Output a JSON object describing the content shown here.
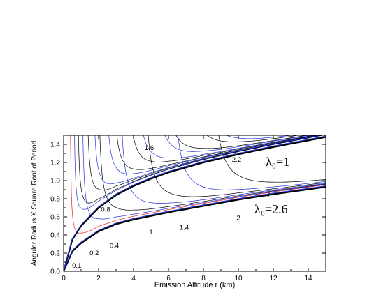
{
  "chart_data": {
    "type": "line",
    "xlabel": "Emission Altitude r (km)",
    "ylabel": "Angular Radius X Square Root of Period",
    "xlim": [
      0,
      15
    ],
    "ylim": [
      0,
      1.5
    ],
    "xticks": [
      0,
      2,
      4,
      6,
      8,
      10,
      12,
      14
    ],
    "yticks": [
      0.0,
      0.2,
      0.4,
      0.6,
      0.8,
      1.0,
      1.2,
      1.4
    ],
    "xtick_labels": [
      "0",
      "2",
      "4",
      "6",
      "8",
      "10",
      "12",
      "14"
    ],
    "ytick_labels": [
      "0.0",
      "0.2",
      "0.4",
      "0.6",
      "0.8",
      "1.0",
      "1.2",
      "1.4"
    ],
    "grid": false,
    "colors": {
      "black": "#000000",
      "blue": "#2233dd",
      "red": "#dd2222"
    },
    "envelopes": [
      {
        "label": "λ₀=1",
        "x": [
          0,
          0.5,
          1,
          2,
          3,
          4,
          5,
          6,
          8,
          10,
          12,
          15
        ],
        "y": [
          0,
          0.35,
          0.5,
          0.7,
          0.84,
          0.94,
          1.02,
          1.09,
          1.2,
          1.29,
          1.37,
          1.48
        ]
      },
      {
        "label": "λ₀=2.6",
        "x": [
          0,
          0.5,
          1,
          2,
          3,
          4,
          5,
          6,
          8,
          10,
          12,
          15
        ],
        "y": [
          0,
          0.22,
          0.31,
          0.44,
          0.52,
          0.57,
          0.61,
          0.65,
          0.72,
          0.79,
          0.85,
          0.93
        ]
      }
    ],
    "curve_labels": [
      {
        "text": "0.1",
        "x": 0.75,
        "y": 0.06
      },
      {
        "text": "0.2",
        "x": 1.75,
        "y": 0.2
      },
      {
        "text": "0.4",
        "x": 2.9,
        "y": 0.28
      },
      {
        "text": "0.8",
        "x": 2.4,
        "y": 0.68
      },
      {
        "text": "1",
        "x": 5.0,
        "y": 0.43
      },
      {
        "text": "1.4",
        "x": 6.9,
        "y": 0.48
      },
      {
        "text": "1.6",
        "x": 4.9,
        "y": 1.36
      },
      {
        "text": "2.2",
        "x": 9.9,
        "y": 1.23
      },
      {
        "text": "2",
        "x": 10.0,
        "y": 0.59
      },
      {
        "text": "3",
        "x": 11.7,
        "y": 0.85
      }
    ]
  }
}
